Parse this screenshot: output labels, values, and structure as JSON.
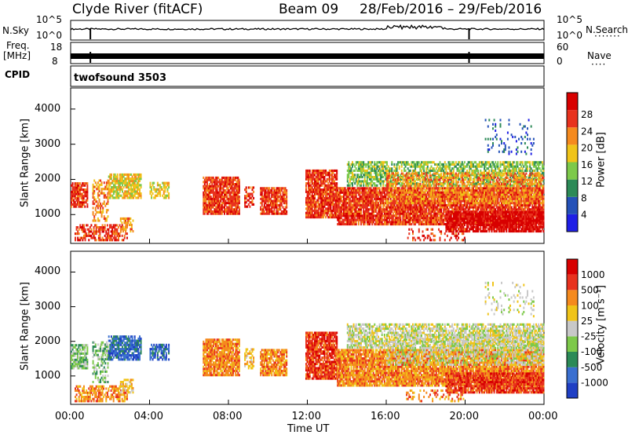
{
  "header": {
    "station": "Clyde River (fitACF)",
    "beam": "Beam 09",
    "date_range": "28/Feb/2016 – 29/Feb/2016"
  },
  "strips": {
    "nsky_label": "N.Sky",
    "nsky_ticks": [
      "10^5",
      "10^0"
    ],
    "nsearch_label": "N.Search",
    "nsearch_ticks": [
      "10^5",
      "10^0"
    ],
    "freq_label_1": "Freq.",
    "freq_label_2": "[MHz]",
    "freq_ticks": [
      "18",
      "8"
    ],
    "nave_label": "Nave",
    "nave_ticks": [
      "60",
      "0"
    ],
    "cpid_label": "CPID",
    "cpid_value": "twofsound 3503"
  },
  "chart_data": [
    {
      "type": "heatmap",
      "panel": "power",
      "ylabel": "Slant Range [km]",
      "yticks": [
        "4000",
        "3000",
        "2000",
        "1000"
      ],
      "ylim": [
        180,
        4600
      ],
      "colorbar_label": "Power [dB]",
      "colorbar_ticks": [
        "28",
        "24",
        "20",
        "16",
        "12",
        "8",
        "4"
      ],
      "colors": [
        "#1f1fe6",
        "#2451b8",
        "#2c8a57",
        "#7dc94a",
        "#f0c419",
        "#f58a1e",
        "#e8321e",
        "#d80000"
      ]
    },
    {
      "type": "heatmap",
      "panel": "velocity",
      "ylabel": "Slant Range [km]",
      "yticks": [
        "4000",
        "3000",
        "2000",
        "1000"
      ],
      "ylim": [
        180,
        4600
      ],
      "colorbar_label": "Velocity [m s⁻¹]",
      "colorbar_ticks": [
        "1000",
        "500",
        "100",
        "25",
        "-25",
        "-100",
        "-500",
        "-1000"
      ],
      "colors": [
        "#1f3fc4",
        "#3a6fd0",
        "#2c8a57",
        "#7dc94a",
        "#c8c8c8",
        "#f0c419",
        "#f58a1e",
        "#e8321e",
        "#d80000"
      ]
    }
  ],
  "xaxis": {
    "label": "Time UT",
    "ticks": [
      "00:00",
      "04:00",
      "08:00",
      "12:00",
      "16:00",
      "20:00",
      "00:00"
    ]
  }
}
